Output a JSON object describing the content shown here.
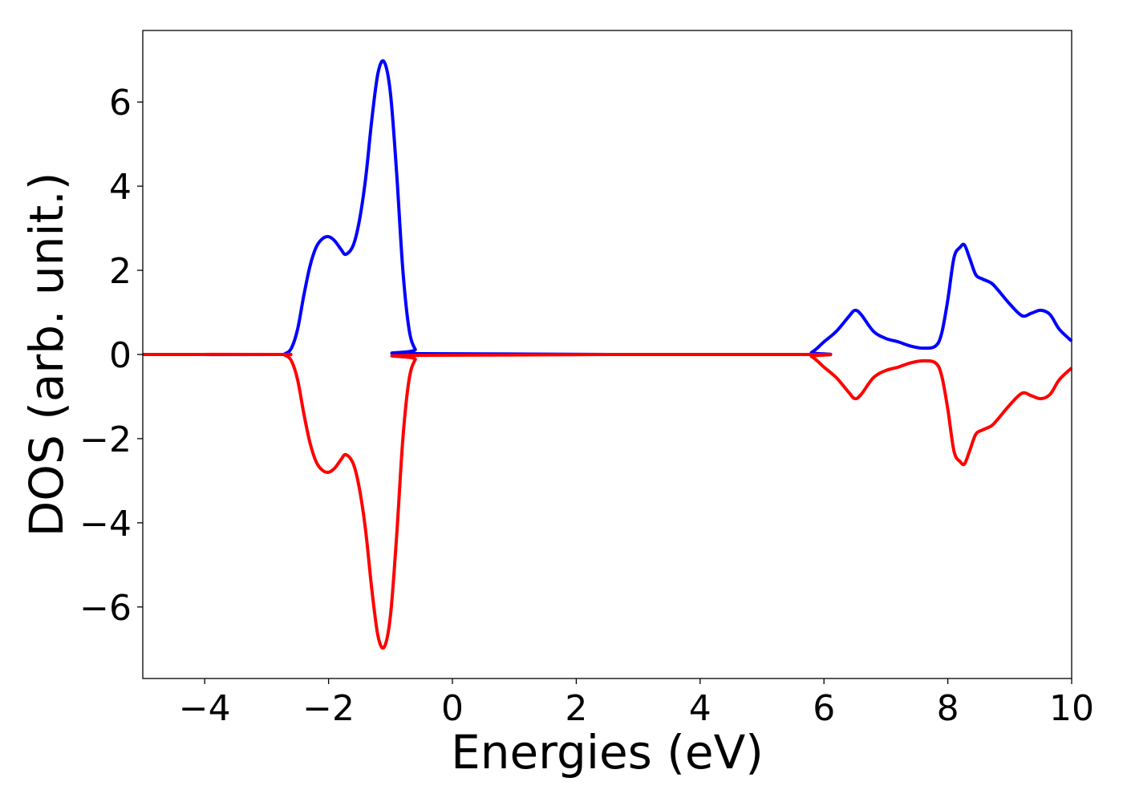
{
  "chart_data": {
    "type": "line",
    "title": "",
    "xlabel": "Energies (eV)",
    "ylabel": "DOS (arb. unit.)",
    "xlim": [
      -5,
      10
    ],
    "ylim": [
      -7.7,
      7.7
    ],
    "xticks": [
      -4,
      -2,
      0,
      2,
      4,
      6,
      8,
      10
    ],
    "yticks": [
      -6,
      -4,
      -2,
      0,
      2,
      4,
      6
    ],
    "xtick_labels": [
      "−4",
      "−2",
      "0",
      "2",
      "4",
      "6",
      "8",
      "10"
    ],
    "ytick_labels": [
      "−6",
      "−4",
      "−2",
      "0",
      "2",
      "4",
      "6"
    ],
    "grid": false,
    "legend": "none",
    "series": [
      {
        "color": "#0000ff",
        "x": [
          -5,
          -2.8,
          -2.7,
          -2.6,
          -2.5,
          -2.4,
          -2.3,
          -2.2,
          -2.1,
          -2.0,
          -1.9,
          -1.8,
          -1.72,
          -1.6,
          -1.5,
          -1.4,
          -1.3,
          -1.2,
          -1.1,
          -1.0,
          -0.9,
          -0.8,
          -0.7,
          -0.6,
          -0.5,
          5.6,
          5.8,
          6.0,
          6.2,
          6.4,
          6.5,
          6.6,
          6.8,
          7.0,
          7.2,
          7.4,
          7.6,
          7.8,
          7.9,
          8.0,
          8.1,
          8.2,
          8.27,
          8.35,
          8.45,
          8.55,
          8.7,
          8.8,
          9.0,
          9.2,
          9.35,
          9.5,
          9.65,
          9.8,
          10.0
        ],
        "y": [
          0,
          0,
          0.02,
          0.15,
          0.6,
          1.4,
          2.1,
          2.55,
          2.75,
          2.8,
          2.7,
          2.5,
          2.38,
          2.6,
          3.2,
          4.2,
          5.6,
          6.7,
          6.95,
          6.2,
          4.3,
          2.0,
          0.6,
          0.12,
          0.02,
          0,
          0.05,
          0.3,
          0.55,
          0.9,
          1.05,
          0.95,
          0.55,
          0.38,
          0.3,
          0.2,
          0.15,
          0.2,
          0.5,
          1.3,
          2.3,
          2.55,
          2.6,
          2.3,
          1.9,
          1.8,
          1.7,
          1.55,
          1.2,
          0.92,
          0.98,
          1.05,
          0.95,
          0.6,
          0.32
        ]
      },
      {
        "color": "#ff0000",
        "x": [
          -5,
          -2.8,
          -2.7,
          -2.6,
          -2.5,
          -2.4,
          -2.3,
          -2.2,
          -2.1,
          -2.0,
          -1.9,
          -1.8,
          -1.72,
          -1.6,
          -1.5,
          -1.4,
          -1.3,
          -1.2,
          -1.1,
          -1.0,
          -0.9,
          -0.8,
          -0.7,
          -0.6,
          -0.5,
          5.6,
          5.8,
          6.0,
          6.2,
          6.4,
          6.5,
          6.6,
          6.8,
          7.0,
          7.2,
          7.4,
          7.6,
          7.8,
          7.9,
          8.0,
          8.1,
          8.2,
          8.27,
          8.35,
          8.45,
          8.55,
          8.7,
          8.8,
          9.0,
          9.2,
          9.35,
          9.5,
          9.65,
          9.8,
          10.0
        ],
        "y": [
          0,
          0,
          -0.02,
          -0.15,
          -0.6,
          -1.4,
          -2.1,
          -2.55,
          -2.75,
          -2.8,
          -2.7,
          -2.5,
          -2.38,
          -2.6,
          -3.2,
          -4.2,
          -5.6,
          -6.7,
          -6.95,
          -6.2,
          -4.3,
          -2.0,
          -0.6,
          -0.12,
          -0.02,
          0,
          -0.05,
          -0.3,
          -0.55,
          -0.9,
          -1.05,
          -0.95,
          -0.55,
          -0.38,
          -0.3,
          -0.2,
          -0.15,
          -0.2,
          -0.5,
          -1.3,
          -2.3,
          -2.55,
          -2.6,
          -2.3,
          -1.9,
          -1.8,
          -1.7,
          -1.55,
          -1.2,
          -0.92,
          -0.98,
          -1.05,
          -0.95,
          -0.6,
          -0.32
        ]
      }
    ]
  }
}
